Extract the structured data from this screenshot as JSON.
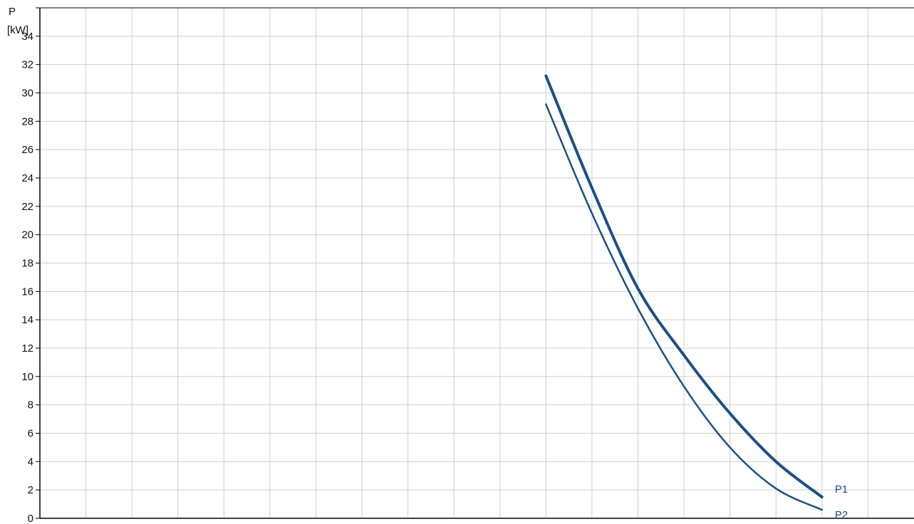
{
  "chart_data": {
    "type": "line",
    "ylabel": "P",
    "yunit": "[kW]",
    "ylim": [
      0,
      36
    ],
    "yticks": [
      0,
      2,
      4,
      6,
      8,
      10,
      12,
      14,
      16,
      18,
      20,
      22,
      24,
      26,
      28,
      30,
      32,
      34
    ],
    "xlim": [
      0,
      19
    ],
    "x_gridlines": 19,
    "grid": true,
    "x_tick_labels": "none",
    "series": [
      {
        "name": "P1",
        "line_weight": "thick",
        "color": "#1b4f87",
        "points": [
          [
            11,
            31.2
          ],
          [
            12,
            23.3
          ],
          [
            13,
            16.2
          ],
          [
            14,
            11.5
          ],
          [
            15,
            7.4
          ],
          [
            16,
            4.0
          ],
          [
            17,
            1.5
          ]
        ]
      },
      {
        "name": "P2",
        "line_weight": "thin",
        "color": "#1b4f87",
        "points": [
          [
            11,
            29.2
          ],
          [
            12,
            21.5
          ],
          [
            13,
            14.8
          ],
          [
            14,
            9.3
          ],
          [
            15,
            5.0
          ],
          [
            16,
            2.1
          ],
          [
            17,
            0.6
          ]
        ]
      }
    ]
  }
}
